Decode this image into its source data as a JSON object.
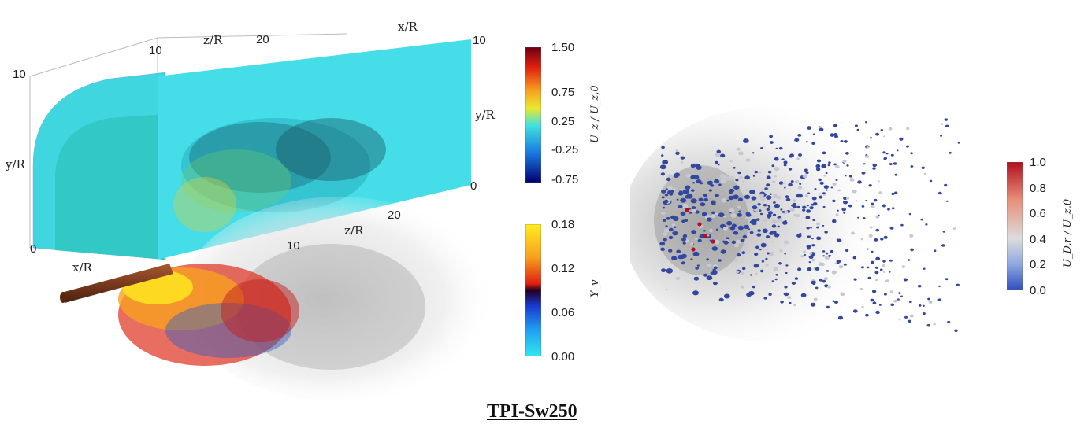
{
  "title": "TPI-Sw250",
  "left_panel": {
    "axis_labels": {
      "z_top": "z/R",
      "x_top": "x/R",
      "y_left": "y/R",
      "y_right": "y/R",
      "z_mid": "z/R",
      "x_bottom": "x/R"
    },
    "ticks": {
      "z_top_10": "10",
      "z_top_20": "20",
      "y_left_10": "10",
      "y_left_0": "0",
      "y_right_10": "10",
      "y_right_0": "0",
      "z_mid_20": "20",
      "z_mid_10": "10"
    },
    "colors": {
      "slice_cyan": "#3fd8e0",
      "slice_teal": "#34c8c8",
      "rod": "#7a3a1e"
    }
  },
  "colorbars": {
    "uz": {
      "label": "U_z / U_z,0",
      "ticks": [
        "1.50",
        "0.75",
        "0.25",
        "-0.25",
        "-0.75"
      ]
    },
    "yv": {
      "label": "Y_v",
      "ticks": [
        "0.18",
        "0.12",
        "0.06",
        "0.00"
      ]
    },
    "udr": {
      "label": "U_D,r / U_z,0",
      "ticks": [
        "1.0",
        "0.8",
        "0.6",
        "0.4",
        "0.2",
        "0.0"
      ]
    }
  }
}
